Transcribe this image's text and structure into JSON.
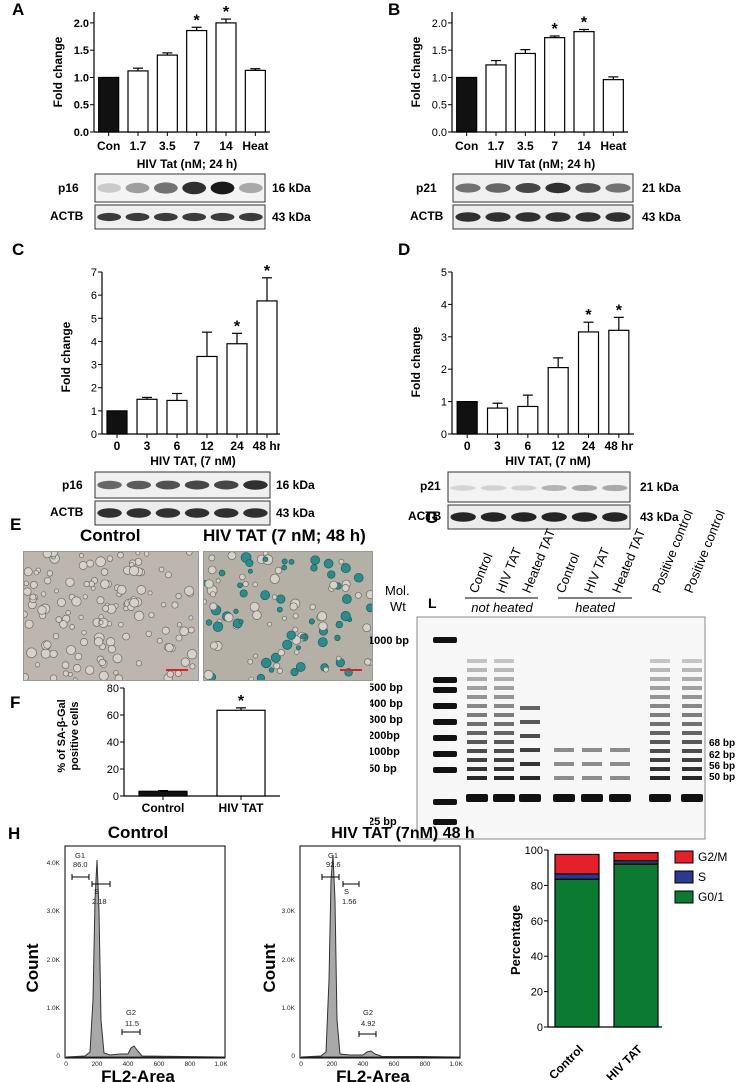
{
  "panels": {
    "A": {
      "letter": "A",
      "ylabel": "Fold change",
      "yticks": [
        "0.0",
        "0.5",
        "1.0",
        "1.5",
        "2.0"
      ],
      "categories": [
        "Con",
        "1.7",
        "3.5",
        "7",
        "14",
        "Heat"
      ],
      "xlabel": "HIV Tat (nM; 24 h)",
      "blot_label": "p16",
      "blot_kda": "16 kDa",
      "actb_label": "ACTB",
      "actb_kda": "43 kDa"
    },
    "B": {
      "letter": "B",
      "ylabel": "Fold change",
      "yticks": [
        "0.0",
        "0.5",
        "1.0",
        "1.5",
        "2.0"
      ],
      "categories": [
        "Con",
        "1.7",
        "3.5",
        "7",
        "14",
        "Heat"
      ],
      "xlabel": "HIV Tat (nM; 24 h)",
      "blot_label": "p21",
      "blot_kda": "21 kDa",
      "actb_label": "ACTB",
      "actb_kda": "43 kDa"
    },
    "C": {
      "letter": "C",
      "ylabel": "Fold change",
      "yticks": [
        "0",
        "1",
        "2",
        "3",
        "4",
        "5",
        "6",
        "7"
      ],
      "categories": [
        "0",
        "3",
        "6",
        "12",
        "24",
        "48 hr"
      ],
      "xlabel": "HIV TAT, (7 nM)",
      "blot_label": "p16",
      "blot_kda": "16 kDa",
      "actb_label": "ACTB",
      "actb_kda": "43 kDa"
    },
    "D": {
      "letter": "D",
      "ylabel": "Fold change",
      "yticks": [
        "0",
        "1",
        "2",
        "3",
        "4",
        "5"
      ],
      "categories": [
        "0",
        "3",
        "6",
        "12",
        "24",
        "48 hr"
      ],
      "xlabel": "HIV TAT, (7 nM)",
      "blot_label": "p21",
      "blot_kda": "21 kDa",
      "actb_label": "ACTB",
      "actb_kda": "43 kDa"
    },
    "E": {
      "letter": "E",
      "control_title": "Control",
      "tat_title": "HIV TAT (7 nM; 48 h)"
    },
    "F": {
      "letter": "F",
      "ylabel_line1": "% of SA-β-Gal",
      "ylabel_line2": "positive cells",
      "yticks": [
        "0",
        "20",
        "40",
        "60",
        "80"
      ],
      "categories": [
        "Control",
        "HIV TAT"
      ]
    },
    "G": {
      "letter": "G",
      "lane_labels": [
        "Control",
        "HIV TAT",
        "Heated TAT",
        "Control",
        "HIV TAT",
        "Heated TAT",
        "Positive control",
        "Positive control"
      ],
      "group_not_heated": "not heated",
      "group_heated": "heated",
      "mol_wt_line1": "Mol.",
      "mol_wt_line2": "Wt",
      "ladder_letter": "L",
      "left_markers": [
        "1000 bp",
        "500 bp",
        "400 bp",
        "300 bp",
        "200bp",
        "100bp",
        "50 bp",
        "25 bp"
      ],
      "right_markers": [
        "68 bp",
        "62 bp",
        "56 bp",
        "50 bp"
      ]
    },
    "H": {
      "letter": "H",
      "hist_control": {
        "title": "Control",
        "g1_label": "G1",
        "g1_value": "86.0",
        "s_label": "S",
        "s_value": "2.18",
        "g2_label": "G2",
        "g2_value": "11.5"
      },
      "hist_tat": {
        "title": "HIV TAT (7nM) 48 h",
        "g1_label": "G1",
        "g1_value": "92.6",
        "s_label": "S",
        "s_value": "1.56",
        "g2_label": "G2",
        "g2_value": "4.92"
      },
      "hist_ylabel": "Count",
      "hist_xlabel": "FL2-Area",
      "hist_yticks": [
        "0",
        "1.0K",
        "2.0K",
        "3.0K",
        "4.0K"
      ],
      "hist_xticks": [
        "0",
        "200",
        "400",
        "600",
        "800",
        "1.0K"
      ],
      "stack_ylabel": "Percentage",
      "stack_yticks": [
        "0",
        "20",
        "40",
        "60",
        "80",
        "100"
      ],
      "stack_categories": [
        "Control",
        "HIV TAT"
      ],
      "legend": [
        {
          "label": "G2/M",
          "color": "#e4202a"
        },
        {
          "label": "S",
          "color": "#2b3a8f"
        },
        {
          "label": "G0/1",
          "color": "#0c7a30"
        }
      ]
    }
  },
  "chart_data": [
    {
      "id": "A",
      "type": "bar",
      "title": "",
      "categories": [
        "Con",
        "1.7",
        "3.5",
        "7",
        "14",
        "Heat"
      ],
      "values": [
        1.0,
        1.12,
        1.41,
        1.86,
        2.0,
        1.13
      ],
      "errors": [
        0,
        0.05,
        0.04,
        0.06,
        0.07,
        0.03
      ],
      "significant": [
        false,
        false,
        false,
        true,
        true,
        false
      ],
      "ylim": [
        0,
        2.2
      ],
      "ylabel": "Fold change",
      "xlabel": "HIV Tat (nM; 24 h)",
      "control_color": "#111111"
    },
    {
      "id": "B",
      "type": "bar",
      "title": "",
      "categories": [
        "Con",
        "1.7",
        "3.5",
        "7",
        "14",
        "Heat"
      ],
      "values": [
        1.0,
        1.23,
        1.44,
        1.73,
        1.84,
        0.96
      ],
      "errors": [
        0,
        0.08,
        0.07,
        0.03,
        0.04,
        0.05
      ],
      "significant": [
        false,
        false,
        false,
        true,
        true,
        false
      ],
      "ylim": [
        0,
        2.2
      ],
      "ylabel": "Fold change",
      "xlabel": "HIV Tat (nM; 24 h)",
      "control_color": "#111111"
    },
    {
      "id": "C",
      "type": "bar",
      "title": "",
      "categories": [
        "0",
        "3",
        "6",
        "12",
        "24",
        "48 hr"
      ],
      "values": [
        1.0,
        1.5,
        1.45,
        3.35,
        3.9,
        5.75
      ],
      "errors": [
        0,
        0.08,
        0.3,
        1.05,
        0.45,
        1.0
      ],
      "significant": [
        false,
        false,
        false,
        false,
        true,
        true
      ],
      "ylim": [
        0,
        7
      ],
      "ylabel": "Fold change",
      "xlabel": "HIV TAT, (7 nM)",
      "control_color": "#111111"
    },
    {
      "id": "D",
      "type": "bar",
      "title": "",
      "categories": [
        "0",
        "3",
        "6",
        "12",
        "24",
        "48 hr"
      ],
      "values": [
        1.0,
        0.8,
        0.85,
        2.05,
        3.15,
        3.2
      ],
      "errors": [
        0,
        0.15,
        0.35,
        0.3,
        0.3,
        0.4
      ],
      "significant": [
        false,
        false,
        false,
        false,
        true,
        true
      ],
      "ylim": [
        0,
        5
      ],
      "ylabel": "Fold change",
      "xlabel": "HIV TAT, (7 nM)",
      "control_color": "#111111"
    },
    {
      "id": "F",
      "type": "bar",
      "title": "",
      "categories": [
        "Control",
        "HIV TAT"
      ],
      "values": [
        3.5,
        63.5
      ],
      "errors": [
        0.5,
        1.8
      ],
      "significant": [
        false,
        true
      ],
      "ylim": [
        0,
        80
      ],
      "ylabel": "% of SA-β-Gal positive cells",
      "control_color": "#111111"
    },
    {
      "id": "H-stack",
      "type": "bar",
      "stacked": true,
      "title": "",
      "categories": [
        "Control",
        "HIV TAT"
      ],
      "series": [
        {
          "name": "G0/1",
          "values": [
            83.5,
            92.0
          ],
          "color": "#0c7a30"
        },
        {
          "name": "S",
          "values": [
            3.0,
            2.0
          ],
          "color": "#2b3a8f"
        },
        {
          "name": "G2/M",
          "values": [
            11.0,
            4.5
          ],
          "color": "#e4202a"
        }
      ],
      "ylim": [
        0,
        100
      ],
      "ylabel": "Percentage",
      "legend_position": "right"
    }
  ]
}
